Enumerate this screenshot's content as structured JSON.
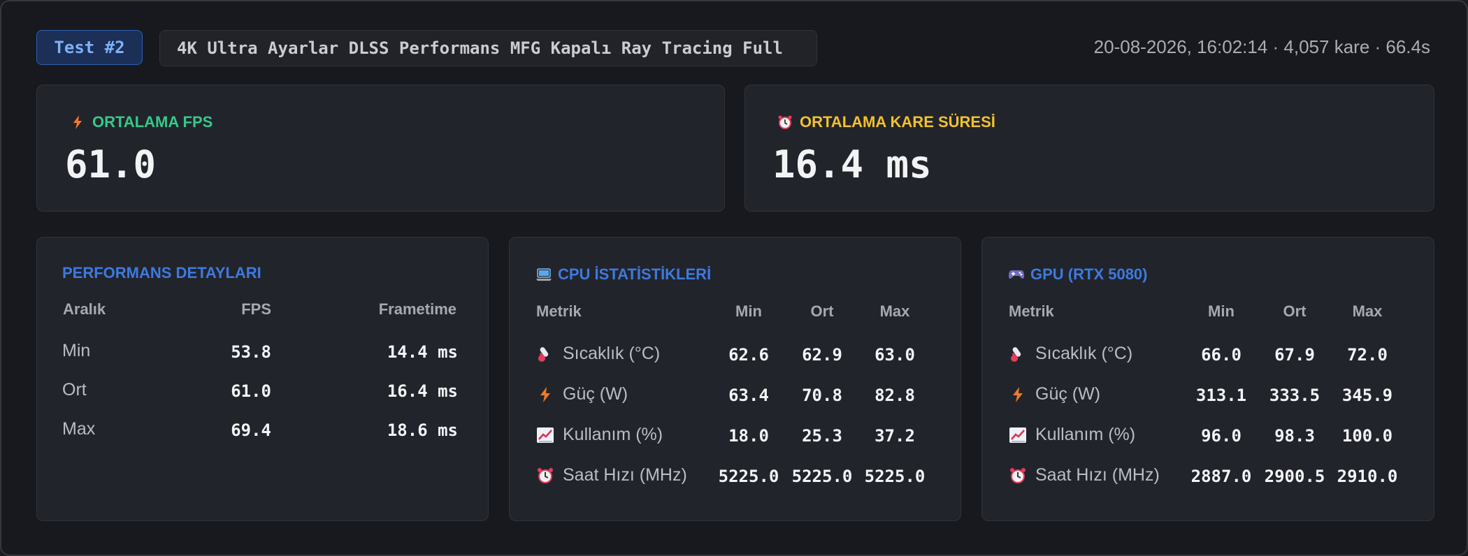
{
  "header": {
    "test_badge": "Test #2",
    "settings": "4K Ultra Ayarlar DLSS Performans MFG Kapalı Ray Tracing Full",
    "meta": "20-08-2026, 16:02:14 · 4,057 kare · 66.4s"
  },
  "avg_fps": {
    "title": "ORTALAMA FPS",
    "value": "61.0",
    "icon": "lightning-icon",
    "color": "#35c98b"
  },
  "avg_frametime": {
    "title": "ORTALAMA KARE SÜRESİ",
    "value": "16.4 ms",
    "icon": "alarm-clock-icon",
    "color": "#f2c12e"
  },
  "performance": {
    "title": "PERFORMANS DETAYLARI",
    "columns": [
      "Aralık",
      "FPS",
      "Frametime"
    ],
    "rows": [
      {
        "label": "Min",
        "fps": "53.8",
        "frametime": "14.4 ms"
      },
      {
        "label": "Ort",
        "fps": "61.0",
        "frametime": "16.4 ms"
      },
      {
        "label": "Max",
        "fps": "69.4",
        "frametime": "18.6 ms"
      }
    ]
  },
  "cpu": {
    "title": "CPU İSTATİSTİKLERİ",
    "icon": "laptop-icon",
    "columns": [
      "Metrik",
      "Min",
      "Ort",
      "Max"
    ],
    "rows": [
      {
        "icon": "thermometer-icon",
        "label": "Sıcaklık (°C)",
        "min": "62.6",
        "avg": "62.9",
        "max": "63.0"
      },
      {
        "icon": "lightning-icon",
        "label": "Güç (W)",
        "min": "63.4",
        "avg": "70.8",
        "max": "82.8"
      },
      {
        "icon": "chart-up-icon",
        "label": "Kullanım (%)",
        "min": "18.0",
        "avg": "25.3",
        "max": "37.2"
      },
      {
        "icon": "alarm-clock-icon",
        "label": "Saat Hızı (MHz)",
        "min": "5225.0",
        "avg": "5225.0",
        "max": "5225.0"
      }
    ]
  },
  "gpu": {
    "title": "GPU (RTX 5080)",
    "icon": "gamepad-icon",
    "columns": [
      "Metrik",
      "Min",
      "Ort",
      "Max"
    ],
    "rows": [
      {
        "icon": "thermometer-icon",
        "label": "Sıcaklık (°C)",
        "min": "66.0",
        "avg": "67.9",
        "max": "72.0"
      },
      {
        "icon": "lightning-icon",
        "label": "Güç (W)",
        "min": "313.1",
        "avg": "333.5",
        "max": "345.9"
      },
      {
        "icon": "chart-up-icon",
        "label": "Kullanım (%)",
        "min": "96.0",
        "avg": "98.3",
        "max": "100.0"
      },
      {
        "icon": "alarm-clock-icon",
        "label": "Saat Hızı (MHz)",
        "min": "2887.0",
        "avg": "2900.5",
        "max": "2910.0"
      }
    ]
  },
  "colors": {
    "section_title": "#3d7ae0",
    "background": "#17191e",
    "card": "#22242b"
  }
}
